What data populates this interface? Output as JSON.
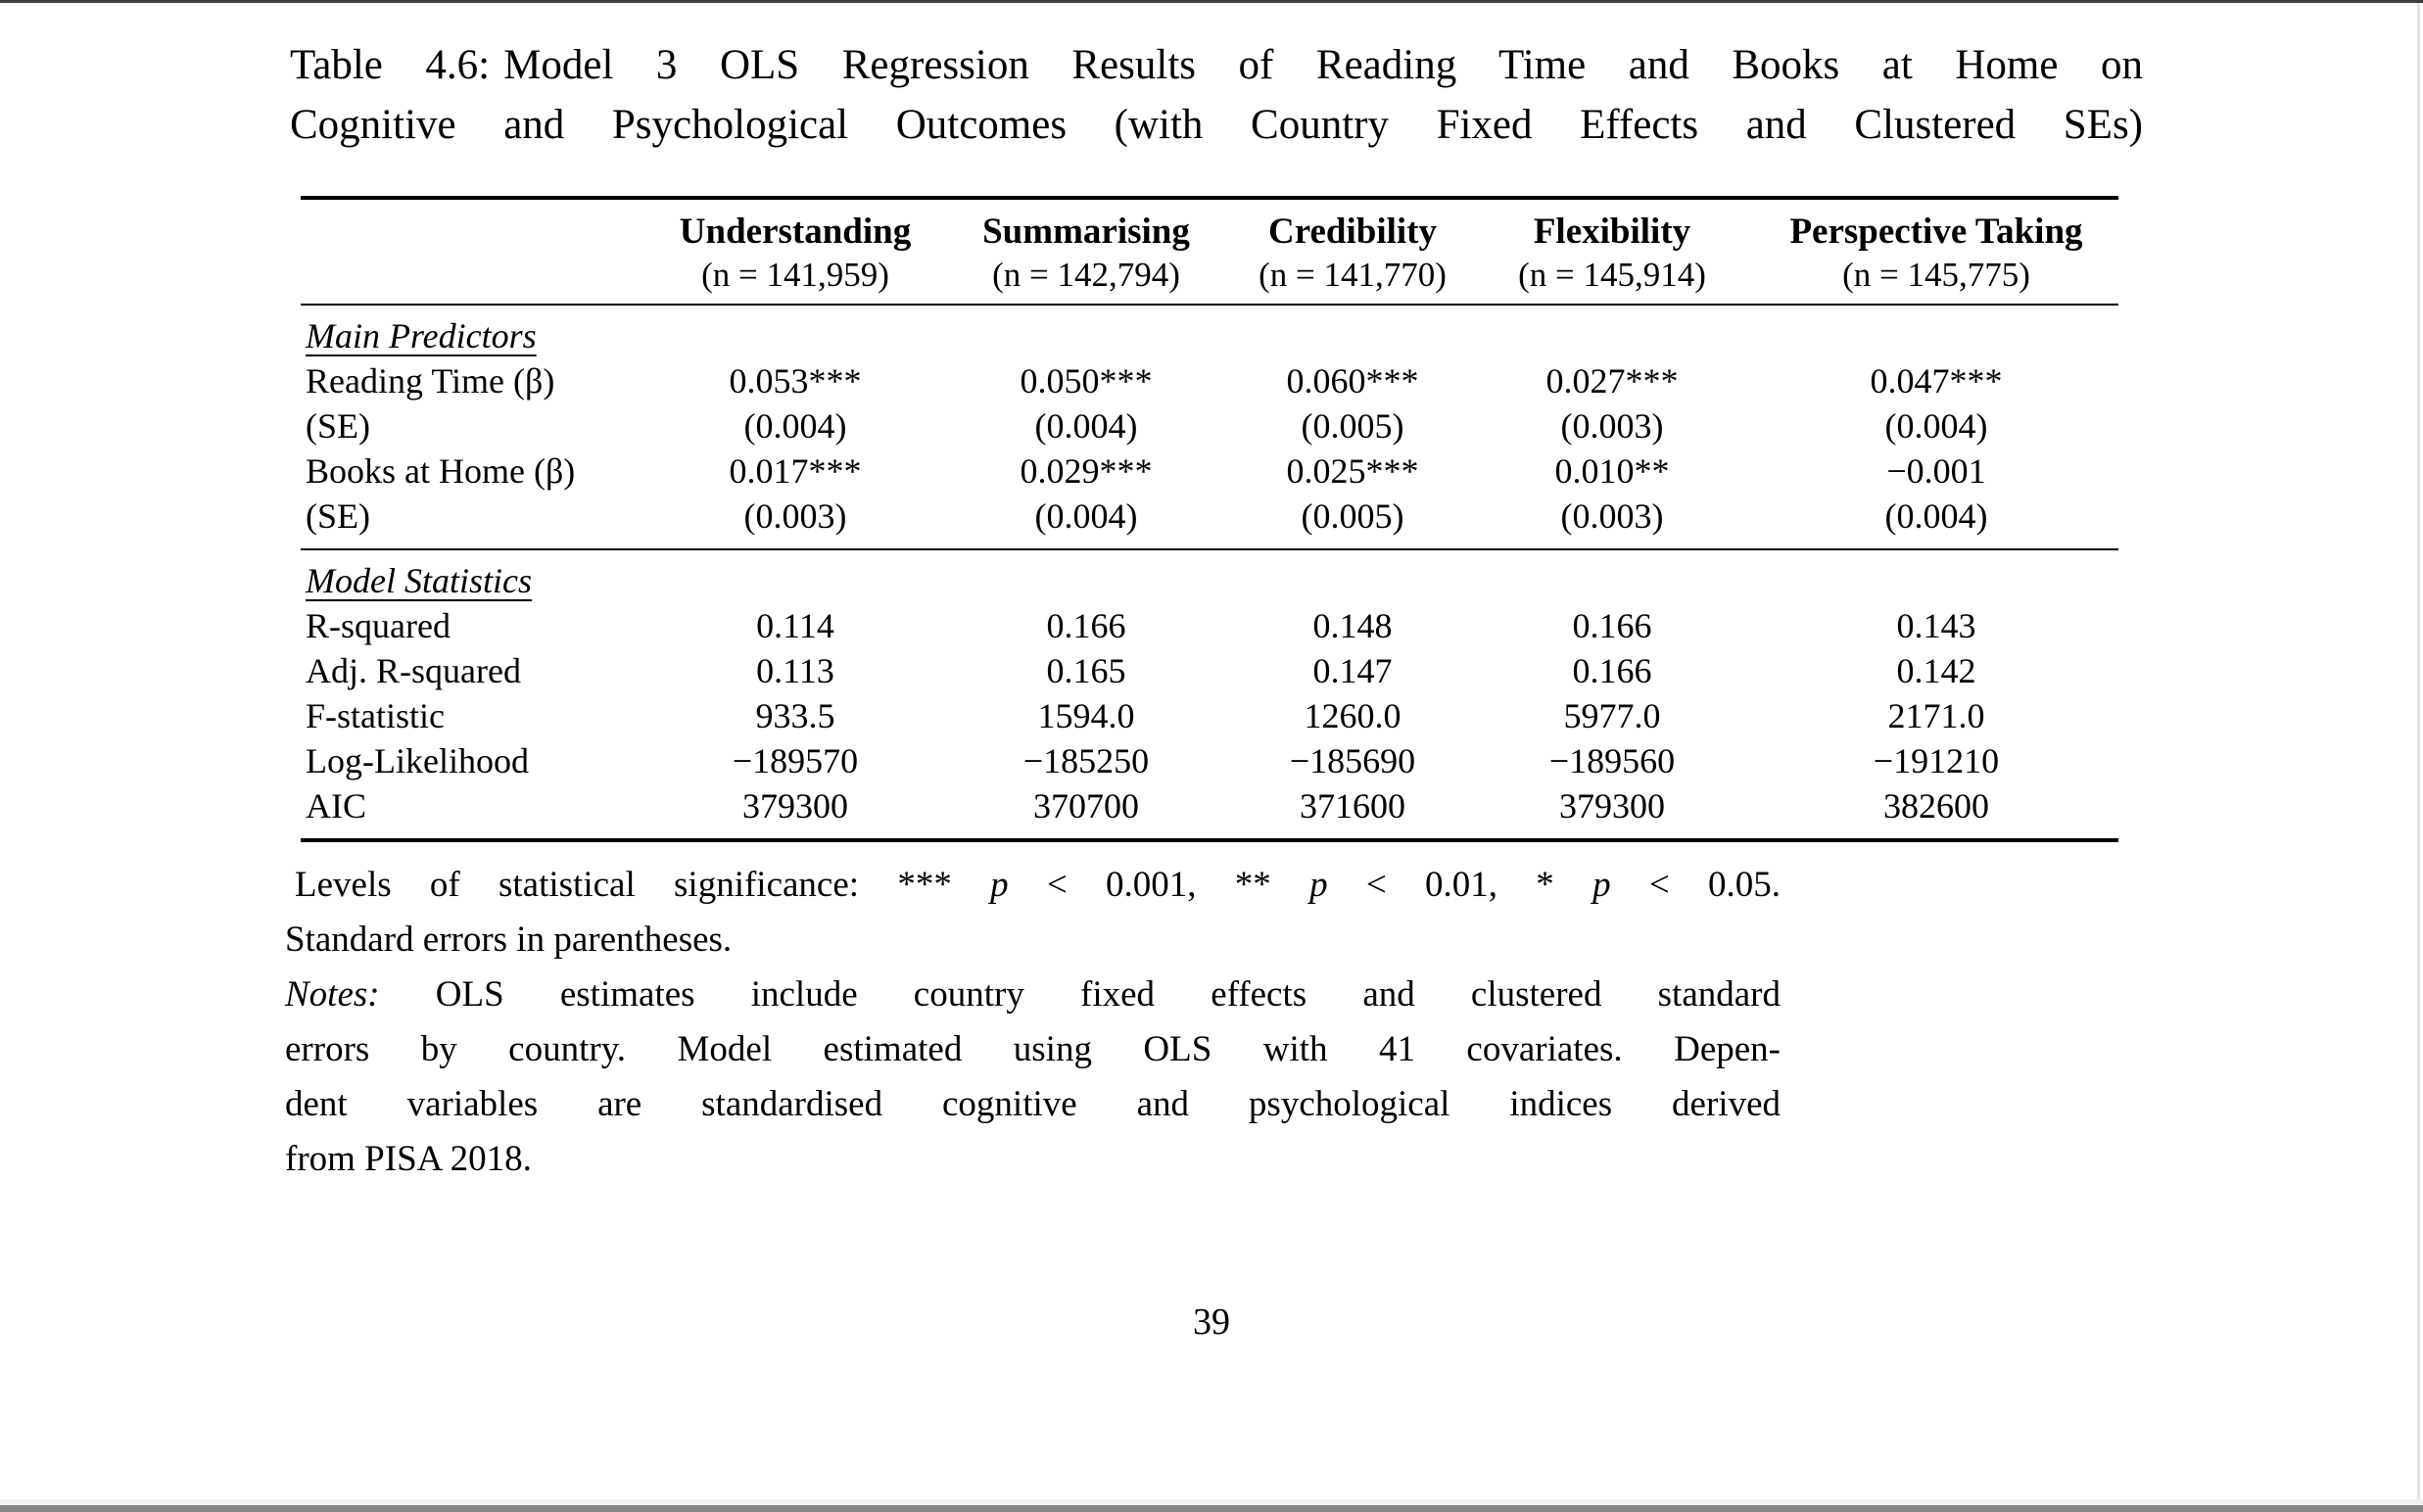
{
  "caption": {
    "label": "Table 4.6:",
    "line1": "Model 3 OLS Regression Results of Reading Time and Books at Home on",
    "line2": "Cognitive and Psychological Outcomes (with Country Fixed Effects and Clustered SEs)"
  },
  "table": {
    "columns": [
      {
        "label": "Understanding",
        "n": "(n = 141,959)"
      },
      {
        "label": "Summarising",
        "n": "(n = 142,794)"
      },
      {
        "label": "Credibility",
        "n": "(n = 141,770)"
      },
      {
        "label": "Flexibility",
        "n": "(n = 145,914)"
      },
      {
        "label": "Perspective Taking",
        "n": "(n = 145,775)"
      }
    ],
    "sections": [
      {
        "title": "Main Predictors",
        "rows": [
          {
            "label": "Reading Time (β)",
            "values": [
              "0.053***",
              "0.050***",
              "0.060***",
              "0.027***",
              "0.047***"
            ]
          },
          {
            "label": "(SE)",
            "values": [
              "(0.004)",
              "(0.004)",
              "(0.005)",
              "(0.003)",
              "(0.004)"
            ]
          },
          {
            "label": "Books at Home (β)",
            "values": [
              "0.017***",
              "0.029***",
              "0.025***",
              "0.010**",
              "−0.001"
            ]
          },
          {
            "label": "(SE)",
            "values": [
              "(0.003)",
              "(0.004)",
              "(0.005)",
              "(0.003)",
              "(0.004)"
            ]
          }
        ]
      },
      {
        "title": "Model Statistics",
        "rows": [
          {
            "label": "R-squared",
            "values": [
              "0.114",
              "0.166",
              "0.148",
              "0.166",
              "0.143"
            ]
          },
          {
            "label": "Adj. R-squared",
            "values": [
              "0.113",
              "0.165",
              "0.147",
              "0.166",
              "0.142"
            ]
          },
          {
            "label": "F-statistic",
            "values": [
              "933.5",
              "1594.0",
              "1260.0",
              "5977.0",
              "2171.0"
            ]
          },
          {
            "label": "Log-Likelihood",
            "values": [
              "−189570",
              "−185250",
              "−185690",
              "−189560",
              "−191210"
            ]
          },
          {
            "label": "AIC",
            "values": [
              "379300",
              "370700",
              "371600",
              "379300",
              "382600"
            ]
          }
        ]
      }
    ]
  },
  "footnotes": {
    "significance": {
      "s0": "Levels of statistical significance: *** ",
      "p": "p",
      "s1": " < 0.001, ** ",
      "s2": " < 0.01, * ",
      "s3": " < 0.05."
    },
    "se": "Standard errors in parentheses.",
    "notes_label": "Notes:",
    "notes1": " OLS estimates include country fixed effects and clustered standard",
    "notes2": "errors by country. Model estimated using OLS with 41 covariates. Depen-",
    "notes3": "dent variables are standardised cognitive and psychological indices derived",
    "notes4": "from PISA 2018."
  },
  "page_number": "39",
  "colors": {
    "text": "#000000",
    "table_rule": "#000000",
    "window_top_edge": "#3d3d3d",
    "window_right_edge": "#e4e4e4",
    "bottom_bar_light": "#f2f2f2",
    "bottom_bar_dark": "#868686"
  }
}
